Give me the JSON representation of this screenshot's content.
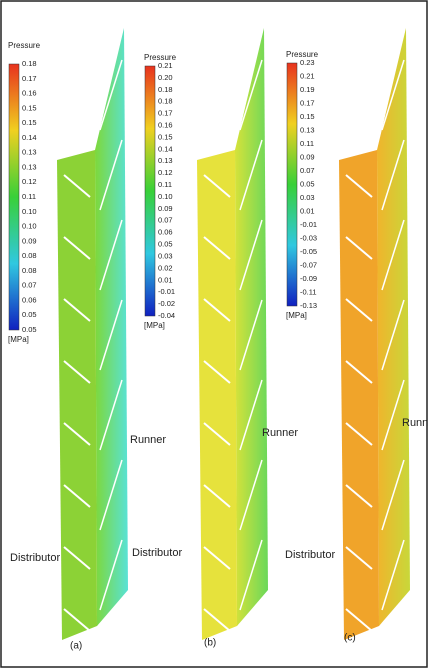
{
  "panels": [
    {
      "colorbar": {
        "title": "Pressure",
        "ticks": [
          "0.18",
          "0.17",
          "0.16",
          "0.15",
          "0.15",
          "0.14",
          "0.13",
          "0.13",
          "0.12",
          "0.11",
          "0.10",
          "0.10",
          "0.09",
          "0.08",
          "0.08",
          "0.07",
          "0.06",
          "0.05",
          "0.05"
        ],
        "unit": "[MPa]"
      },
      "runner_label": "Runner",
      "distributor_label": "Distributor",
      "caption": "(a)"
    },
    {
      "colorbar": {
        "title": "Pressure",
        "ticks": [
          "0.21",
          "0.20",
          "0.18",
          "0.18",
          "0.17",
          "0.16",
          "0.15",
          "0.14",
          "0.13",
          "0.12",
          "0.11",
          "0.10",
          "0.09",
          "0.07",
          "0.06",
          "0.05",
          "0.03",
          "0.02",
          "0.01",
          "-0.01",
          "-0.02",
          "-0.04"
        ],
        "unit": "[MPa]"
      },
      "runner_label": "Runner",
      "distributor_label": "Distributor",
      "caption": "(b)"
    },
    {
      "colorbar": {
        "title": "Pressure",
        "ticks": [
          "0.23",
          "0.21",
          "0.19",
          "0.17",
          "0.15",
          "0.13",
          "0.11",
          "0.09",
          "0.07",
          "0.05",
          "0.03",
          "0.01",
          "-0.01",
          "-0.03",
          "-0.05",
          "-0.07",
          "-0.09",
          "-0.11",
          "-0.13"
        ],
        "unit": "[MPa]"
      },
      "runner_label": "Runner",
      "distributor_label": "Distributor",
      "caption": "(c)"
    }
  ]
}
